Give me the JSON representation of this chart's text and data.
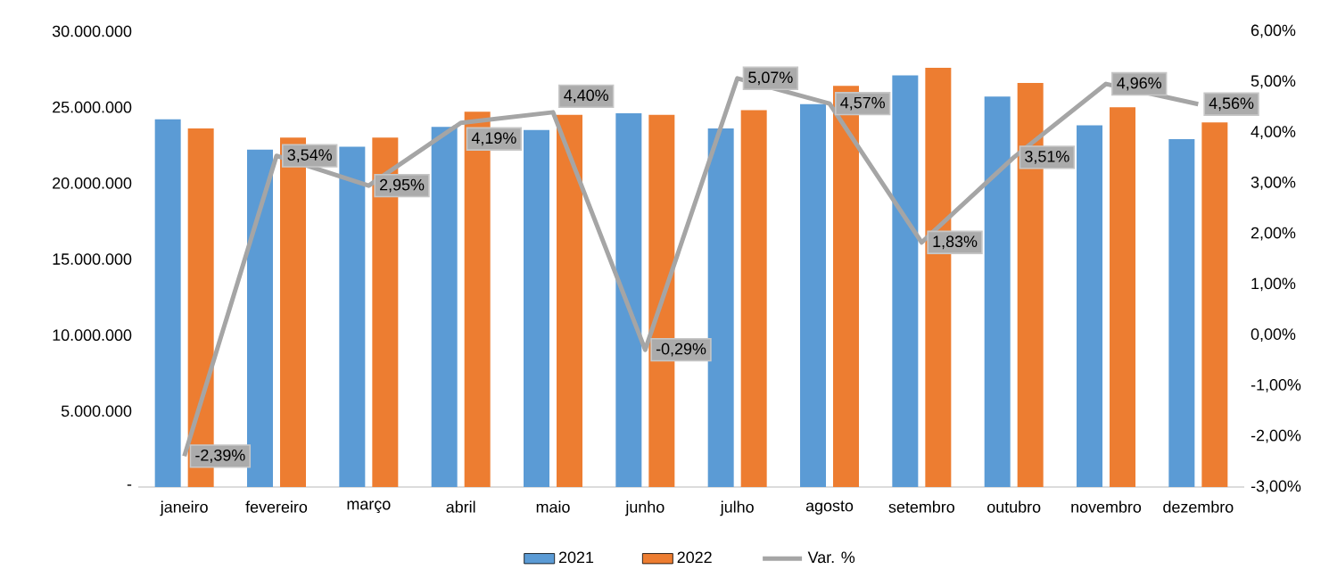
{
  "chart_data": {
    "type": "bar",
    "categories": [
      "janeiro",
      "fevereiro",
      "março",
      "abril",
      "maio",
      "junho",
      "julho",
      "agosto",
      "setembro",
      "outubro",
      "novembro",
      "dezembro"
    ],
    "series": [
      {
        "name": "2021",
        "color": "#5b9bd5",
        "values": [
          24200000,
          22200000,
          22400000,
          23700000,
          23500000,
          24600000,
          23600000,
          25200000,
          27100000,
          25700000,
          23800000,
          22900000
        ]
      },
      {
        "name": "2022",
        "color": "#ed7d31",
        "values": [
          23600000,
          23000000,
          23000000,
          24700000,
          24500000,
          24500000,
          24800000,
          26400000,
          27600000,
          26600000,
          25000000,
          24000000
        ]
      },
      {
        "name": "Var. %",
        "type": "line",
        "axis": "y2",
        "color": "#a5a5a5",
        "values": [
          -2.39,
          3.54,
          2.95,
          4.19,
          4.4,
          -0.29,
          5.07,
          4.57,
          1.83,
          3.51,
          4.96,
          4.56
        ],
        "value_labels": [
          "-2,39%",
          "3,54%",
          "2,95%",
          "4,19%",
          "4,40%",
          "-0,29%",
          "5,07%",
          "4,57%",
          "1,83%",
          "3,51%",
          "4,96%",
          "4,56%"
        ]
      }
    ],
    "ylim": [
      0,
      30000000
    ],
    "yticks": [
      {
        "value": 0,
        "label": "-"
      },
      {
        "value": 5000000,
        "label": "5.000.000"
      },
      {
        "value": 10000000,
        "label": "10.000.000"
      },
      {
        "value": 15000000,
        "label": "15.000.000"
      },
      {
        "value": 20000000,
        "label": "20.000.000"
      },
      {
        "value": 25000000,
        "label": "25.000.000"
      },
      {
        "value": 30000000,
        "label": "30.000.000"
      }
    ],
    "y2lim": [
      -3,
      6
    ],
    "y2ticks": [
      {
        "value": -3,
        "label": "-3,00%"
      },
      {
        "value": -2,
        "label": "-2,00%"
      },
      {
        "value": -1,
        "label": "-1,00%"
      },
      {
        "value": 0,
        "label": "0,00%"
      },
      {
        "value": 1,
        "label": "1,00%"
      },
      {
        "value": 2,
        "label": "2,00%"
      },
      {
        "value": 3,
        "label": "3,00%"
      },
      {
        "value": 4,
        "label": "4,00%"
      },
      {
        "value": 5,
        "label": "5,00%"
      },
      {
        "value": 6,
        "label": "6,00%"
      }
    ],
    "legend": "bottom",
    "marker": "none",
    "grid": false
  }
}
